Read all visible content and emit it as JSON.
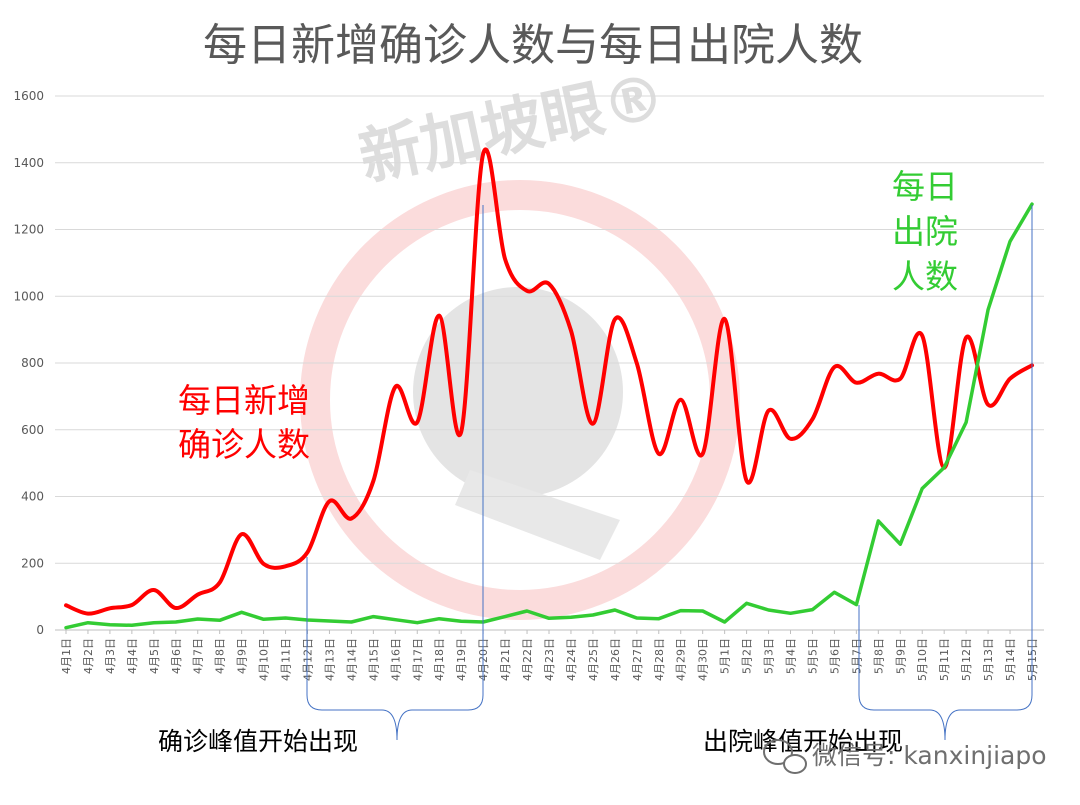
{
  "chart_data": {
    "type": "line",
    "title": "每日新增确诊人数与每日出院人数",
    "ylim": [
      0,
      1600
    ],
    "yticks": [
      0,
      200,
      400,
      600,
      800,
      1000,
      1200,
      1400,
      1600
    ],
    "grid": true,
    "categories": [
      "4月1日",
      "4月2日",
      "4月3日",
      "4月4日",
      "4月5日",
      "4月6日",
      "4月7日",
      "4月8日",
      "4月9日",
      "4月10日",
      "4月11日",
      "4月12日",
      "4月13日",
      "4月14日",
      "4月15日",
      "4月16日",
      "4月17日",
      "4月18日",
      "4月19日",
      "4月20日",
      "4月21日",
      "4月22日",
      "4月23日",
      "4月24日",
      "4月25日",
      "4月26日",
      "4月27日",
      "4月28日",
      "4月29日",
      "4月30日",
      "5月1日",
      "5月2日",
      "5月3日",
      "5月4日",
      "5月5日",
      "5月6日",
      "5月7日",
      "5月8日",
      "5月9日",
      "5月10日",
      "5月11日",
      "5月12日",
      "5月13日",
      "5月14日",
      "5月15日"
    ],
    "series": [
      {
        "name": "每日新增确诊人数",
        "label_lines": [
          "每日新增",
          "确诊人数"
        ],
        "color": "#ff0000",
        "values": [
          74,
          49,
          65,
          75,
          120,
          66,
          106,
          142,
          287,
          198,
          191,
          233,
          386,
          334,
          447,
          728,
          623,
          942,
          594,
          1426,
          1111,
          1016,
          1037,
          897,
          618,
          931,
          799,
          528,
          690,
          528,
          932,
          447,
          657,
          573,
          632,
          788,
          741,
          768,
          753,
          882,
          486,
          876,
          675,
          753,
          793
        ]
      },
      {
        "name": "每日出院人数",
        "label_lines": [
          "每日",
          "出院",
          "人数"
        ],
        "color": "#33cc33",
        "values": [
          7,
          22,
          16,
          14,
          22,
          24,
          33,
          29,
          53,
          32,
          36,
          30,
          27,
          24,
          40,
          31,
          22,
          34,
          26,
          24,
          40,
          57,
          35,
          38,
          45,
          60,
          36,
          34,
          58,
          57,
          24,
          80,
          60,
          50,
          61,
          113,
          76,
          327,
          257,
          424,
          487,
          622,
          960,
          1164,
          1276
        ]
      }
    ],
    "annotations": [
      {
        "text": "确诊峰值开始出现"
      },
      {
        "text": "出院峰值开始出现"
      }
    ]
  },
  "watermark": {
    "brand": "新加坡眼®",
    "wechat": "微信号: kanxinjiapo"
  }
}
